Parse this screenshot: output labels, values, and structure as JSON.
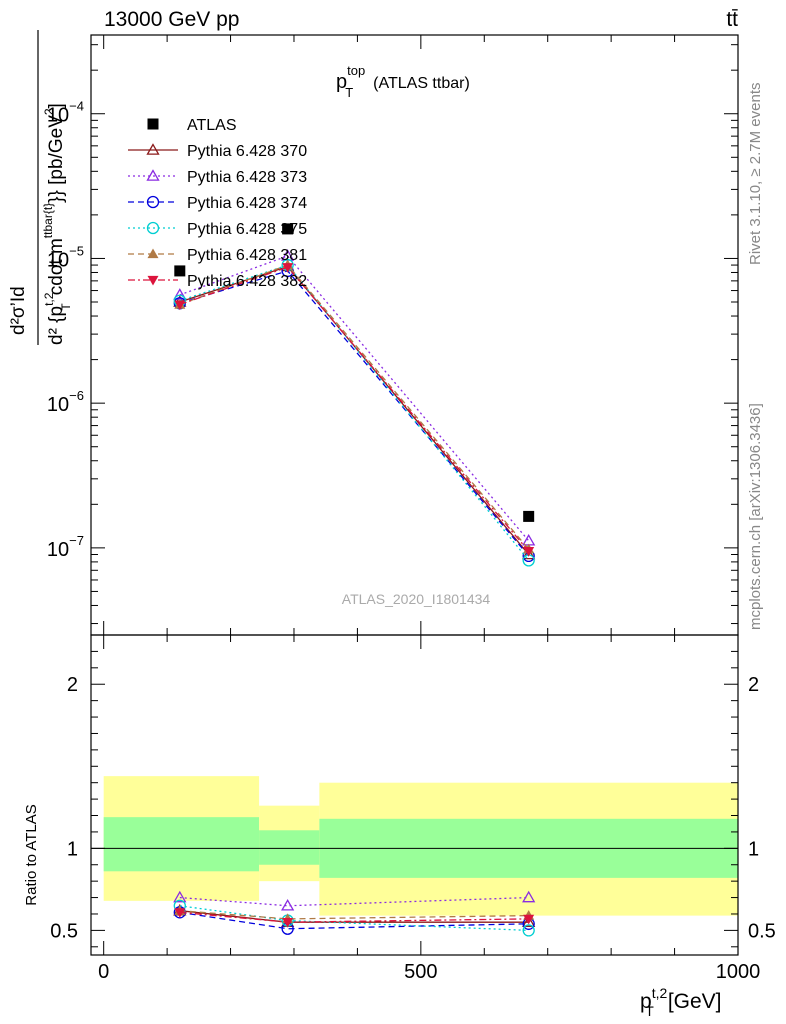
{
  "header": {
    "energy_label": "13000 GeV pp",
    "process_label": "tt̄"
  },
  "side_labels": {
    "rivet": "Rivet 3.1.10, ≥ 2.7M events",
    "mcplots": "mcplots.cern.ch [arXiv:1306.3436]"
  },
  "chart_data": [
    {
      "type": "scatter",
      "panel": "main",
      "title_main": "p",
      "title_sup": "top",
      "title_sub": "T",
      "title_rest": "(ATLAS ttbar)",
      "watermark": "ATLAS_2020_I1801434",
      "ylabel_line1": "d²σ’Id",
      "ylabel_line2": "d² {p",
      "ylabel_t2": "t,2",
      "ylabel_sub": "T",
      "ylabel_cdot": "cdot m",
      "ylabel_ttbar": "ttbar{t}",
      "ylabel_close": "}} [pb/GeV",
      "ylabel_pow": "2",
      "ylabel_end": "]",
      "yscale": "log",
      "ylim": [
        2.5e-08,
        0.00035
      ],
      "xlim": [
        -20,
        1000
      ],
      "y_ticks": [
        {
          "value": 0.0001,
          "base": "10",
          "exp": "−4"
        },
        {
          "value": 1e-05,
          "base": "10",
          "exp": "−5"
        },
        {
          "value": 1e-06,
          "base": "10",
          "exp": "−6"
        },
        {
          "value": 1e-07,
          "base": "10",
          "exp": "−7"
        }
      ],
      "legend_position": "top-left",
      "x": [
        120,
        290,
        670
      ],
      "series": [
        {
          "name": "ATLAS",
          "values": [
            8.2e-06,
            1.6e-05,
            1.65e-07
          ],
          "color": "#000000",
          "marker": "square",
          "line": "none"
        },
        {
          "name": "Pythia 6.428 370",
          "values": [
            5e-06,
            8.8e-06,
            9e-08
          ],
          "color": "#8b1a1a",
          "marker": "triangle-open",
          "line": "solid"
        },
        {
          "name": "Pythia 6.428 373",
          "values": [
            5.6e-06,
            1.04e-05,
            1.12e-07
          ],
          "color": "#8a2be2",
          "marker": "triangle-open",
          "line": "dotted"
        },
        {
          "name": "Pythia 6.428 374",
          "values": [
            4.9e-06,
            8.2e-06,
            8.8e-08
          ],
          "color": "#0000dd",
          "marker": "circle-open",
          "line": "dashed"
        },
        {
          "name": "Pythia 6.428 375",
          "values": [
            5.1e-06,
            9e-06,
            8.2e-08
          ],
          "color": "#00ced1",
          "marker": "circle-open",
          "line": "dotted"
        },
        {
          "name": "Pythia 6.428 381",
          "values": [
            4.8e-06,
            9e-06,
            9.8e-08
          ],
          "color": "#b07a45",
          "marker": "triangle-filled",
          "line": "dashed"
        },
        {
          "name": "Pythia 6.428 382",
          "values": [
            4.8e-06,
            8.7e-06,
            9.5e-08
          ],
          "color": "#dc143c",
          "marker": "triangle-down-filled",
          "line": "dashdot"
        }
      ]
    },
    {
      "type": "scatter",
      "panel": "ratio",
      "ylabel": "Ratio to ATLAS",
      "xlabel_main": "p",
      "xlabel_sup": "t,2",
      "xlabel_sub": "T",
      "xlabel_rest": "[GeV]",
      "ylim": [
        0.35,
        2.3
      ],
      "xlim": [
        -20,
        1000
      ],
      "x_ticks": [
        "0",
        "500",
        "1000"
      ],
      "y_ticks": [
        "0.5",
        "1",
        "2"
      ],
      "bands": [
        {
          "x0": 0,
          "x1": 245,
          "yellow": [
            0.68,
            1.44
          ],
          "green": [
            0.86,
            1.19
          ]
        },
        {
          "x0": 245,
          "x1": 340,
          "yellow": [
            0.8,
            1.26
          ],
          "green": [
            0.9,
            1.11
          ]
        },
        {
          "x0": 340,
          "x1": 1000,
          "yellow": [
            0.59,
            1.4
          ],
          "green": [
            0.82,
            1.18
          ]
        }
      ],
      "x": [
        120,
        290,
        670
      ],
      "series": [
        {
          "name": "Pythia 6.428 370",
          "values": [
            0.62,
            0.55,
            0.55
          ]
        },
        {
          "name": "Pythia 6.428 373",
          "values": [
            0.7,
            0.65,
            0.7
          ]
        },
        {
          "name": "Pythia 6.428 374",
          "values": [
            0.61,
            0.51,
            0.54
          ]
        },
        {
          "name": "Pythia 6.428 375",
          "values": [
            0.65,
            0.56,
            0.5
          ]
        },
        {
          "name": "Pythia 6.428 381",
          "values": [
            0.62,
            0.57,
            0.59
          ]
        },
        {
          "name": "Pythia 6.428 382",
          "values": [
            0.61,
            0.55,
            0.57
          ]
        }
      ]
    }
  ]
}
